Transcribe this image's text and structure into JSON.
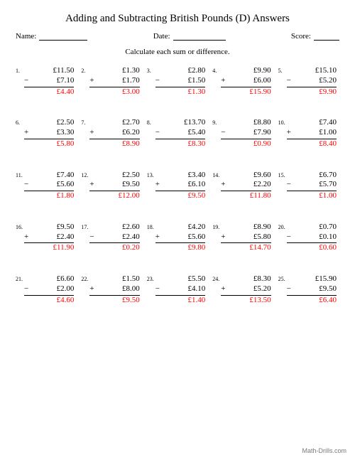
{
  "title": "Adding and Subtracting British Pounds (D) Answers",
  "labels": {
    "name": "Name:",
    "date": "Date:",
    "score": "Score:"
  },
  "instruction": "Calculate each sum or difference.",
  "footer": "Math-Drills.com",
  "answer_color": "#ff0000",
  "underline_widths": {
    "name": 68,
    "date": 74,
    "score": 36
  },
  "problems": [
    {
      "n": "1.",
      "a": "£11.50",
      "op": "−",
      "b": "£7.10",
      "ans": "£4.40"
    },
    {
      "n": "2.",
      "a": "£1.30",
      "op": "+",
      "b": "£1.70",
      "ans": "£3.00"
    },
    {
      "n": "3.",
      "a": "£2.80",
      "op": "−",
      "b": "£1.50",
      "ans": "£1.30"
    },
    {
      "n": "4.",
      "a": "£9.90",
      "op": "+",
      "b": "£6.00",
      "ans": "£15.90"
    },
    {
      "n": "5.",
      "a": "£15.10",
      "op": "−",
      "b": "£5.20",
      "ans": "£9.90"
    },
    {
      "n": "6.",
      "a": "£2.50",
      "op": "+",
      "b": "£3.30",
      "ans": "£5.80"
    },
    {
      "n": "7.",
      "a": "£2.70",
      "op": "+",
      "b": "£6.20",
      "ans": "£8.90"
    },
    {
      "n": "8.",
      "a": "£13.70",
      "op": "−",
      "b": "£5.40",
      "ans": "£8.30"
    },
    {
      "n": "9.",
      "a": "£8.80",
      "op": "−",
      "b": "£7.90",
      "ans": "£0.90"
    },
    {
      "n": "10.",
      "a": "£7.40",
      "op": "+",
      "b": "£1.00",
      "ans": "£8.40"
    },
    {
      "n": "11.",
      "a": "£7.40",
      "op": "−",
      "b": "£5.60",
      "ans": "£1.80"
    },
    {
      "n": "12.",
      "a": "£2.50",
      "op": "+",
      "b": "£9.50",
      "ans": "£12.00"
    },
    {
      "n": "13.",
      "a": "£3.40",
      "op": "+",
      "b": "£6.10",
      "ans": "£9.50"
    },
    {
      "n": "14.",
      "a": "£9.60",
      "op": "+",
      "b": "£2.20",
      "ans": "£11.80"
    },
    {
      "n": "15.",
      "a": "£6.70",
      "op": "−",
      "b": "£5.70",
      "ans": "£1.00"
    },
    {
      "n": "16.",
      "a": "£9.50",
      "op": "+",
      "b": "£2.40",
      "ans": "£11.90"
    },
    {
      "n": "17.",
      "a": "£2.60",
      "op": "−",
      "b": "£2.40",
      "ans": "£0.20"
    },
    {
      "n": "18.",
      "a": "£4.20",
      "op": "+",
      "b": "£5.60",
      "ans": "£9.80"
    },
    {
      "n": "19.",
      "a": "£8.90",
      "op": "+",
      "b": "£5.80",
      "ans": "£14.70"
    },
    {
      "n": "20.",
      "a": "£0.70",
      "op": "−",
      "b": "£0.10",
      "ans": "£0.60"
    },
    {
      "n": "21.",
      "a": "£6.60",
      "op": "−",
      "b": "£2.00",
      "ans": "£4.60"
    },
    {
      "n": "22.",
      "a": "£1.50",
      "op": "+",
      "b": "£8.00",
      "ans": "£9.50"
    },
    {
      "n": "23.",
      "a": "£5.50",
      "op": "−",
      "b": "£4.10",
      "ans": "£1.40"
    },
    {
      "n": "24.",
      "a": "£8.30",
      "op": "+",
      "b": "£5.20",
      "ans": "£13.50"
    },
    {
      "n": "25.",
      "a": "£15.90",
      "op": "−",
      "b": "£9.50",
      "ans": "£6.40"
    }
  ]
}
